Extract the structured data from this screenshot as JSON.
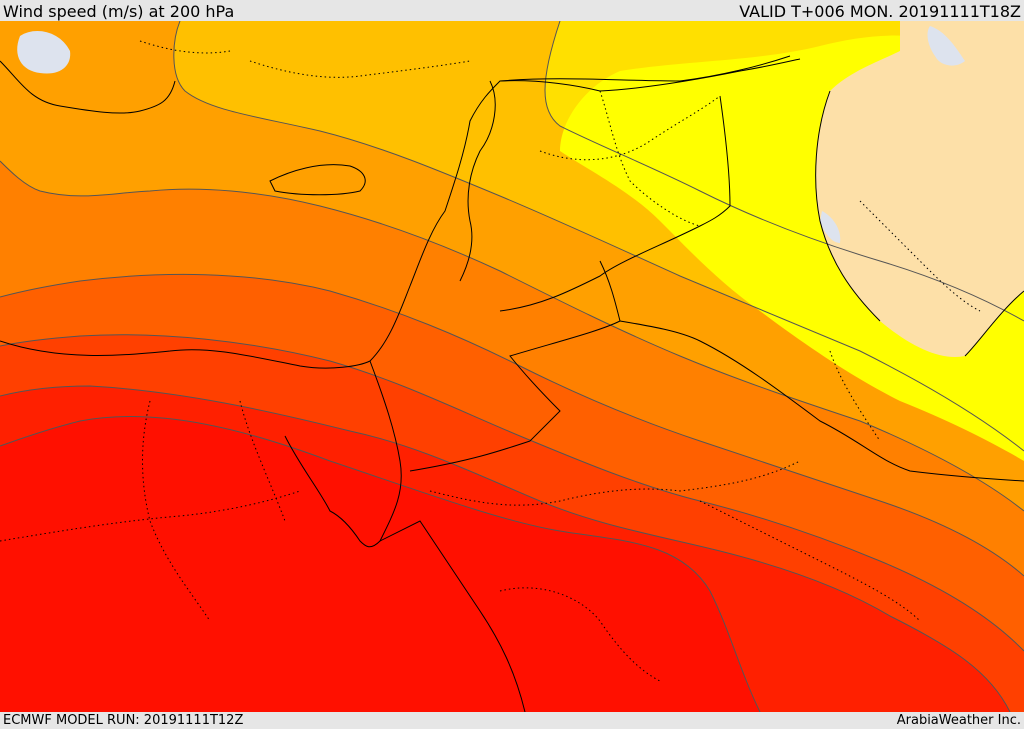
{
  "header": {
    "title": "Wind speed (m/s) at 200 hPa",
    "valid": "VALID T+006 MON. 20191111T18Z"
  },
  "footer": {
    "model_run": "ECMWF MODEL RUN: 20191111T12Z",
    "brand": "ArabiaWeather Inc."
  },
  "colors": {
    "land_outside": "#fde0a8",
    "lake": "#dde3ee",
    "level_1": "#ffff00",
    "level_2": "#ffe000",
    "level_3": "#ffc000",
    "level_4": "#ffa000",
    "level_5": "#ff8000",
    "level_6": "#ff6000",
    "level_7": "#ff4000",
    "level_8": "#ff2000",
    "level_9": "#ff1000"
  }
}
